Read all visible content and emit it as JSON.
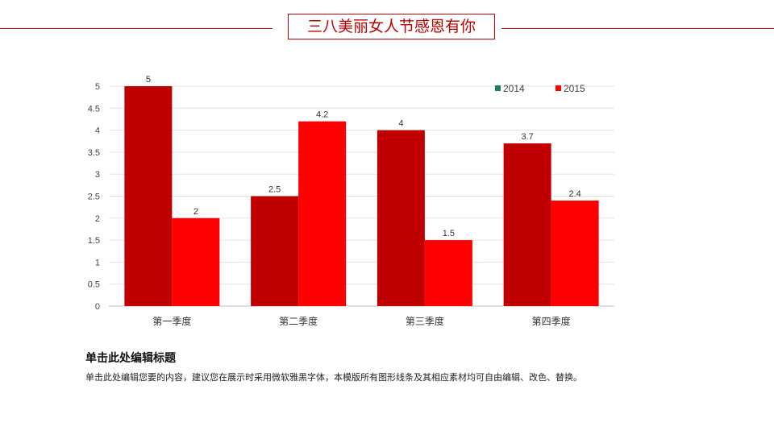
{
  "header": {
    "title": "三八美丽女人节感恩有你"
  },
  "chart_data": {
    "type": "bar",
    "categories": [
      "第一季度",
      "第二季度",
      "第三季度",
      "第四季度"
    ],
    "series": [
      {
        "name": "2014",
        "values": [
          5,
          2.5,
          4,
          3.7
        ],
        "color": "#C00000",
        "legend_color": "#1E7F5C"
      },
      {
        "name": "2015",
        "values": [
          2,
          4.2,
          1.5,
          2.4
        ],
        "color": "#FF0000",
        "legend_color": "#FF0000"
      }
    ],
    "ylim": [
      0,
      5
    ],
    "yticks": [
      "0",
      "0.5",
      "1",
      "1.5",
      "2",
      "2.5",
      "3",
      "3.5",
      "4",
      "4.5",
      "5"
    ],
    "grid": true,
    "legend": "top-right",
    "data_labels": true
  },
  "text": {
    "heading": "单击此处编辑标题",
    "body": "单击此处编辑您要的内容，建议您在展示时采用微软雅黑字体，本模版所有图形线条及其相应素材均可自由编辑、改色、替换。"
  }
}
